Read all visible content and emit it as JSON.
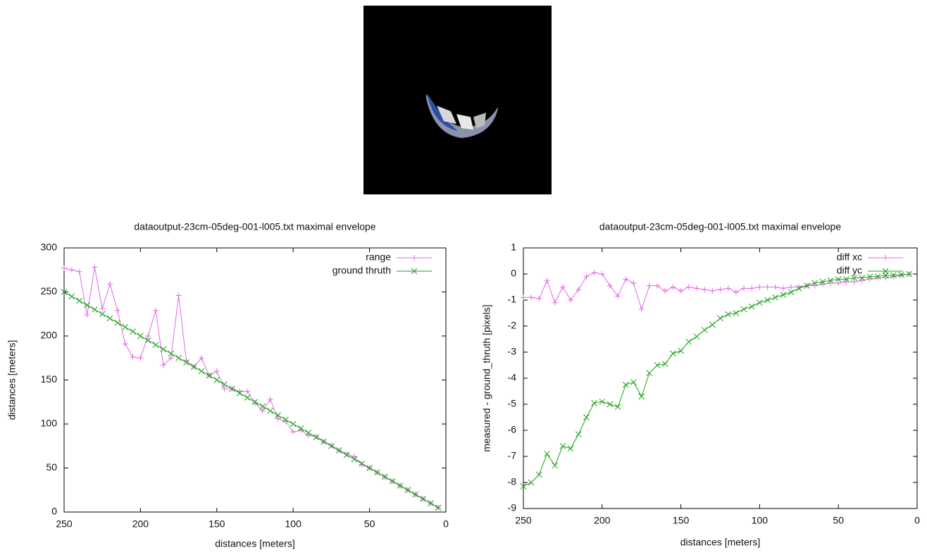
{
  "chart_data": [
    {
      "type": "line",
      "title": "dataoutput-23cm-05deg-001-l005.txt maximal envelope",
      "x_label": "distances [meters]",
      "y_label": "distances [meters]",
      "xlim": [
        250,
        0
      ],
      "ylim": [
        0,
        300
      ],
      "xticks": [
        250,
        200,
        150,
        100,
        50,
        0
      ],
      "yticks": [
        0,
        50,
        100,
        150,
        200,
        250,
        300
      ],
      "grid": false,
      "legend": "upper right",
      "x": [
        250,
        245,
        240,
        235,
        230,
        225,
        220,
        215,
        210,
        205,
        200,
        195,
        190,
        185,
        180,
        175,
        170,
        165,
        160,
        155,
        150,
        145,
        140,
        135,
        130,
        125,
        120,
        115,
        110,
        105,
        100,
        95,
        90,
        85,
        80,
        75,
        70,
        65,
        60,
        55,
        50,
        45,
        40,
        35,
        30,
        25,
        20,
        15,
        10,
        5
      ],
      "series": [
        {
          "name": "range",
          "color": "#e668e6",
          "marker": "plus",
          "values": [
            277,
            275,
            273,
            224,
            278,
            231,
            259,
            229,
            191,
            176,
            175,
            200,
            229,
            167,
            175,
            246,
            172,
            165,
            175,
            155,
            160,
            140,
            140,
            137,
            137,
            124,
            115,
            128,
            106,
            103,
            91,
            93,
            87,
            86,
            80,
            76,
            70,
            66,
            63,
            54,
            50,
            45,
            40,
            35,
            30,
            25,
            20,
            15,
            10,
            5
          ]
        },
        {
          "name": "ground thruth",
          "color": "#1aa31a",
          "marker": "cross",
          "values": [
            250,
            245,
            240,
            235,
            230,
            225,
            220,
            215,
            210,
            205,
            200,
            195,
            190,
            185,
            180,
            175,
            170,
            165,
            160,
            155,
            150,
            145,
            140,
            135,
            130,
            125,
            120,
            115,
            110,
            105,
            100,
            95,
            90,
            85,
            80,
            75,
            70,
            65,
            60,
            55,
            50,
            45,
            40,
            35,
            30,
            25,
            20,
            15,
            10,
            5
          ]
        }
      ]
    },
    {
      "type": "line",
      "title": "dataoutput-23cm-05deg-001-l005.txt maximal envelope",
      "x_label": "distances [meters]",
      "y_label": "measured - ground_thruth [pixels]",
      "xlim": [
        250,
        0
      ],
      "ylim": [
        -9,
        1
      ],
      "xticks": [
        250,
        200,
        150,
        100,
        50,
        0
      ],
      "yticks": [
        1,
        0,
        -1,
        -2,
        -3,
        -4,
        -5,
        -6,
        -7,
        -8,
        -9
      ],
      "grid": false,
      "legend": "upper right",
      "x": [
        250,
        245,
        240,
        235,
        230,
        225,
        220,
        215,
        210,
        205,
        200,
        195,
        190,
        185,
        180,
        175,
        170,
        165,
        160,
        155,
        150,
        145,
        140,
        135,
        130,
        125,
        120,
        115,
        110,
        105,
        100,
        95,
        90,
        85,
        80,
        75,
        70,
        65,
        60,
        55,
        50,
        45,
        40,
        35,
        30,
        25,
        20,
        15,
        10,
        5
      ],
      "series": [
        {
          "name": "diff xc",
          "color": "#e668e6",
          "marker": "plus",
          "values": [
            -0.9,
            -0.9,
            -0.95,
            -0.25,
            -1.1,
            -0.5,
            -1.0,
            -0.6,
            -0.1,
            0.05,
            0,
            -0.45,
            -0.85,
            -0.2,
            -0.35,
            -1.35,
            -0.45,
            -0.45,
            -0.65,
            -0.5,
            -0.65,
            -0.5,
            -0.55,
            -0.6,
            -0.65,
            -0.6,
            -0.55,
            -0.7,
            -0.55,
            -0.55,
            -0.5,
            -0.5,
            -0.5,
            -0.55,
            -0.5,
            -0.5,
            -0.45,
            -0.45,
            -0.4,
            -0.35,
            -0.35,
            -0.3,
            -0.3,
            -0.25,
            -0.2,
            -0.15,
            -0.15,
            -0.1,
            -0.05,
            0
          ]
        },
        {
          "name": "diff yc",
          "color": "#1aa31a",
          "marker": "cross",
          "values": [
            -8.15,
            -8.0,
            -7.7,
            -6.9,
            -7.35,
            -6.6,
            -6.7,
            -6.15,
            -5.5,
            -4.95,
            -4.9,
            -5.0,
            -5.1,
            -4.25,
            -4.15,
            -4.7,
            -3.8,
            -3.5,
            -3.45,
            -3.05,
            -2.95,
            -2.6,
            -2.4,
            -2.15,
            -1.95,
            -1.7,
            -1.55,
            -1.5,
            -1.35,
            -1.25,
            -1.1,
            -1.0,
            -0.9,
            -0.8,
            -0.7,
            -0.55,
            -0.45,
            -0.35,
            -0.3,
            -0.25,
            -0.2,
            -0.2,
            -0.15,
            -0.15,
            -0.1,
            -0.1,
            -0.05,
            -0.05,
            -0.03,
            0
          ]
        }
      ]
    }
  ]
}
